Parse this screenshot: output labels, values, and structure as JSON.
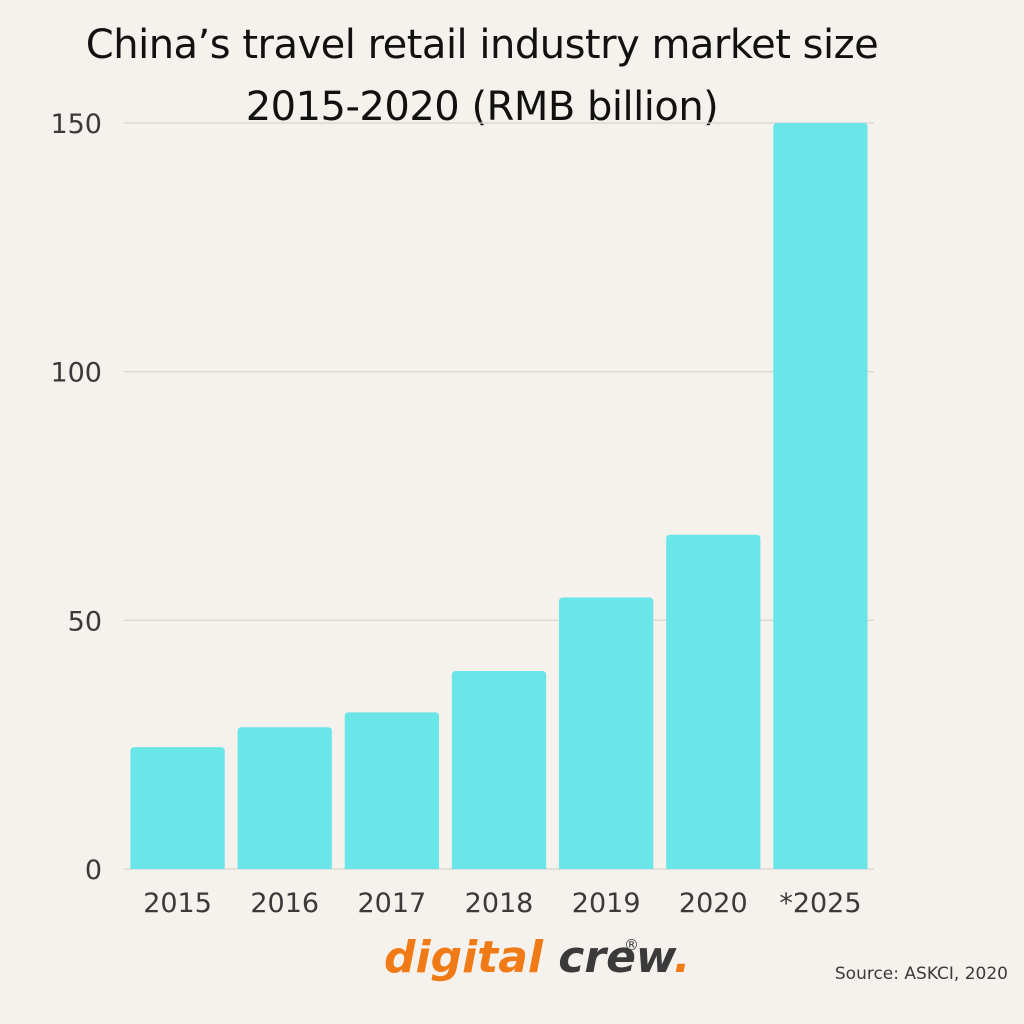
{
  "chart_data": {
    "type": "bar",
    "title": "China’s travel retail industry market size",
    "subtitle": "2015-2020  (RMB billion)",
    "categories": [
      "2015",
      "2016",
      "2017",
      "2018",
      "2019",
      "2020",
      "*2025"
    ],
    "values": [
      24.5,
      28.5,
      31.5,
      39.8,
      54.6,
      67.2,
      150
    ],
    "ylim": [
      0,
      150
    ],
    "yticks": [
      0,
      50,
      100,
      150
    ],
    "grid": true,
    "bar_color": "#6be6e8",
    "xlabel": "",
    "ylabel": ""
  },
  "branding": {
    "logo_text": "digital crew.",
    "registered_mark": "®"
  },
  "source": "Source: ASKCI, 2020",
  "colors": {
    "background": "#f5f1ec",
    "bar": "#6be6e8",
    "gridline": "#d6d2cd",
    "logo_orange": "#f07a16",
    "logo_dark": "#3a3a3a"
  }
}
